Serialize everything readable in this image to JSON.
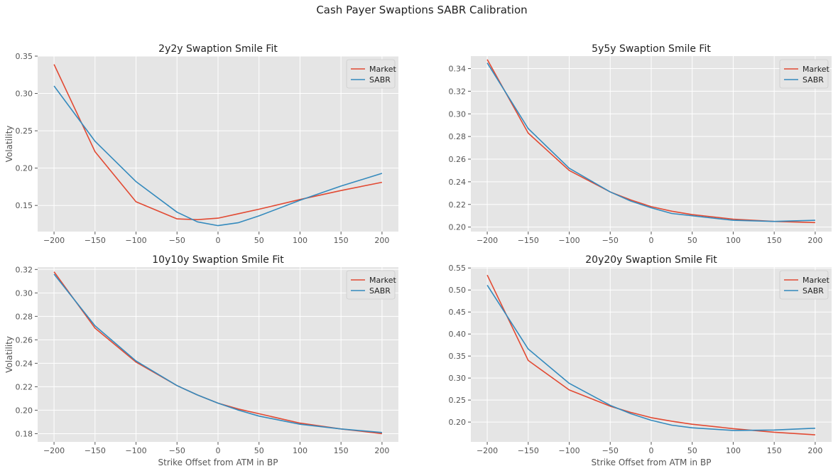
{
  "figure": {
    "suptitle": "Cash Payer Swaptions SABR Calibration"
  },
  "chart_data": [
    {
      "type": "line",
      "title": "2y2y Swaption Smile Fit",
      "xlabel": "",
      "ylabel": "Volatility",
      "xlim": [
        -220,
        220
      ],
      "ylim": [
        0.115,
        0.35
      ],
      "xticks": [
        -200,
        -150,
        -100,
        -50,
        0,
        50,
        100,
        150,
        200
      ],
      "xtick_labels": [
        "−200",
        "−150",
        "−100",
        "−50",
        "0",
        "50",
        "100",
        "150",
        "200"
      ],
      "yticks": [
        0.15,
        0.2,
        0.25,
        0.3,
        0.35
      ],
      "ytick_labels": [
        "0.15",
        "0.20",
        "0.25",
        "0.30",
        "0.35"
      ],
      "legend": "top-right",
      "grid": true,
      "x": [
        -200,
        -150,
        -100,
        -50,
        -25,
        0,
        25,
        50,
        100,
        150,
        200
      ],
      "series": [
        {
          "name": "Market",
          "color": "#e24a33",
          "values": [
            0.339,
            0.222,
            0.155,
            0.132,
            0.131,
            0.133,
            0.139,
            0.145,
            0.158,
            0.17,
            0.181
          ]
        },
        {
          "name": "SABR",
          "color": "#348abd",
          "values": [
            0.31,
            0.236,
            0.182,
            0.141,
            0.128,
            0.123,
            0.127,
            0.136,
            0.157,
            0.176,
            0.193
          ]
        }
      ]
    },
    {
      "type": "line",
      "title": "5y5y Swaption Smile Fit",
      "xlabel": "",
      "ylabel": "",
      "xlim": [
        -220,
        220
      ],
      "ylim": [
        0.196,
        0.351
      ],
      "xticks": [
        -200,
        -150,
        -100,
        -50,
        0,
        50,
        100,
        150,
        200
      ],
      "xtick_labels": [
        "−200",
        "−150",
        "−100",
        "−50",
        "0",
        "50",
        "100",
        "150",
        "200"
      ],
      "yticks": [
        0.2,
        0.22,
        0.24,
        0.26,
        0.28,
        0.3,
        0.32,
        0.34
      ],
      "ytick_labels": [
        "0.20",
        "0.22",
        "0.24",
        "0.26",
        "0.28",
        "0.30",
        "0.32",
        "0.34"
      ],
      "legend": "top-right",
      "grid": true,
      "x": [
        -200,
        -150,
        -100,
        -50,
        -25,
        0,
        25,
        50,
        100,
        150,
        200
      ],
      "series": [
        {
          "name": "Market",
          "color": "#e24a33",
          "values": [
            0.348,
            0.283,
            0.25,
            0.231,
            0.224,
            0.218,
            0.214,
            0.211,
            0.207,
            0.205,
            0.204
          ]
        },
        {
          "name": "SABR",
          "color": "#348abd",
          "values": [
            0.345,
            0.287,
            0.252,
            0.231,
            0.223,
            0.217,
            0.212,
            0.21,
            0.206,
            0.205,
            0.206
          ]
        }
      ]
    },
    {
      "type": "line",
      "title": "10y10y Swaption Smile Fit",
      "xlabel": "Strike Offset from ATM in BP",
      "ylabel": "Volatility",
      "xlim": [
        -220,
        220
      ],
      "ylim": [
        0.173,
        0.322
      ],
      "xticks": [
        -200,
        -150,
        -100,
        -50,
        0,
        50,
        100,
        150,
        200
      ],
      "xtick_labels": [
        "−200",
        "−150",
        "−100",
        "−50",
        "0",
        "50",
        "100",
        "150",
        "200"
      ],
      "yticks": [
        0.18,
        0.2,
        0.22,
        0.24,
        0.26,
        0.28,
        0.3,
        0.32
      ],
      "ytick_labels": [
        "0.18",
        "0.20",
        "0.22",
        "0.24",
        "0.26",
        "0.28",
        "0.30",
        "0.32"
      ],
      "legend": "top-right",
      "grid": true,
      "x": [
        -200,
        -150,
        -100,
        -50,
        -25,
        0,
        25,
        50,
        100,
        150,
        200
      ],
      "series": [
        {
          "name": "Market",
          "color": "#e24a33",
          "values": [
            0.318,
            0.27,
            0.241,
            0.221,
            0.213,
            0.206,
            0.201,
            0.197,
            0.189,
            0.184,
            0.18
          ]
        },
        {
          "name": "SABR",
          "color": "#348abd",
          "values": [
            0.316,
            0.272,
            0.242,
            0.221,
            0.213,
            0.206,
            0.2,
            0.195,
            0.188,
            0.184,
            0.181
          ]
        }
      ]
    },
    {
      "type": "line",
      "title": "20y20y Swaption Smile Fit",
      "xlabel": "Strike Offset from ATM in BP",
      "ylabel": "",
      "xlim": [
        -220,
        220
      ],
      "ylim": [
        0.155,
        0.552
      ],
      "xticks": [
        -200,
        -150,
        -100,
        -50,
        0,
        50,
        100,
        150,
        200
      ],
      "xtick_labels": [
        "−200",
        "−150",
        "−100",
        "−50",
        "0",
        "50",
        "100",
        "150",
        "200"
      ],
      "yticks": [
        0.2,
        0.25,
        0.3,
        0.35,
        0.4,
        0.45,
        0.5,
        0.55
      ],
      "ytick_labels": [
        "0.20",
        "0.25",
        "0.30",
        "0.35",
        "0.40",
        "0.45",
        "0.50",
        "0.55"
      ],
      "legend": "top-right",
      "grid": true,
      "x": [
        -200,
        -150,
        -100,
        -50,
        -25,
        0,
        25,
        50,
        100,
        150,
        200
      ],
      "series": [
        {
          "name": "Market",
          "color": "#e24a33",
          "values": [
            0.534,
            0.34,
            0.273,
            0.236,
            0.222,
            0.21,
            0.202,
            0.195,
            0.185,
            0.177,
            0.171
          ]
        },
        {
          "name": "SABR",
          "color": "#348abd",
          "values": [
            0.511,
            0.366,
            0.288,
            0.238,
            0.219,
            0.204,
            0.193,
            0.187,
            0.181,
            0.182,
            0.186
          ]
        }
      ]
    }
  ]
}
